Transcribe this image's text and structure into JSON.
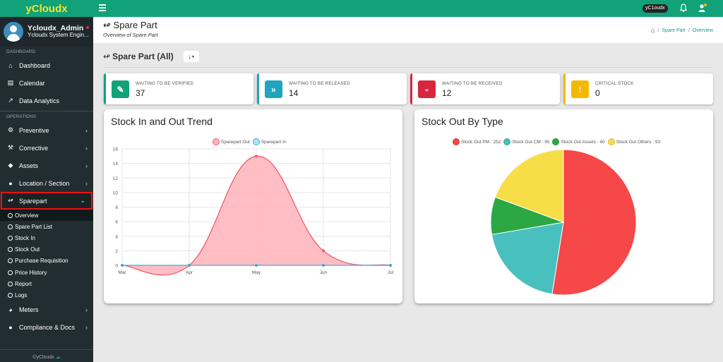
{
  "brand": "yCloudx",
  "user": {
    "name": "Ycloudx_Admin",
    "role": "Ycloudx System Engin..."
  },
  "sidebar": {
    "section_dashboard": "DASHBOARD",
    "section_operations": "OPERATIONS",
    "dashboard_items": [
      {
        "label": "Dashboard",
        "icon": "home-icon"
      },
      {
        "label": "Calendar",
        "icon": "calendar-icon"
      },
      {
        "label": "Data Analytics",
        "icon": "chart-icon"
      }
    ],
    "ops_items": [
      {
        "label": "Preventive",
        "icon": "gear-icon"
      },
      {
        "label": "Corrective",
        "icon": "wrench-icon"
      },
      {
        "label": "Assets",
        "icon": "tag-icon"
      },
      {
        "label": "Location / Section",
        "icon": "globe-icon"
      },
      {
        "label": "Sparepart",
        "icon": "sparepart-icon"
      }
    ],
    "sub_items": [
      "Overview",
      "Spare Part List",
      "Stock In",
      "Stock Out",
      "Purchase Requisition",
      "Price History",
      "Report",
      "Logs"
    ],
    "bottom_items": [
      {
        "label": "Meters",
        "icon": "meter-icon"
      },
      {
        "label": "Compliance & Docs",
        "icon": "docs-icon"
      }
    ],
    "footer": "©yCloudx"
  },
  "topbar": {
    "env_badge": "yC1oudx"
  },
  "header": {
    "title": "Spare Part",
    "subtitle": "Overview of Spare Part"
  },
  "breadcrumb": {
    "link": "Spare Part",
    "current": "Overview"
  },
  "filter": {
    "title": "Spare Part (All)"
  },
  "cards": [
    {
      "label": "WAITING TO BE VERIFIED",
      "value": "37",
      "color": "#11a27a"
    },
    {
      "label": "WAITING TO BE RELEASED",
      "value": "14",
      "color": "#20a4bf"
    },
    {
      "label": "WAITING TO BE RECEIVED",
      "value": "12",
      "color": "#d7263d"
    },
    {
      "label": "CRITICAL STOCK",
      "value": "0",
      "color": "#f5b800"
    }
  ],
  "chart_data": [
    {
      "type": "area",
      "title": "Stock In and Out Trend",
      "categories": [
        "Mar",
        "Apr",
        "May",
        "Jun",
        "Jul"
      ],
      "ylim": [
        0,
        16
      ],
      "yticks": [
        0,
        2,
        4,
        6,
        8,
        10,
        12,
        14,
        16
      ],
      "series": [
        {
          "name": "Sparepart Out",
          "values": [
            0,
            0,
            15,
            2,
            0
          ],
          "color": "#f35a6a",
          "fill": "#ffb3ba"
        },
        {
          "name": "Sparepart In",
          "values": [
            0,
            0,
            0,
            0,
            0
          ],
          "color": "#46a8e0",
          "fill": "#aee0f7"
        }
      ],
      "grid": true,
      "legend": "top-center"
    },
    {
      "type": "pie",
      "title": "Stock Out By Type",
      "slices": [
        {
          "label": "Stock Out PM",
          "value": 252,
          "color": "#f64749"
        },
        {
          "label": "Stock Out CM",
          "value": 95,
          "color": "#48c0bd"
        },
        {
          "label": "Stock Out Assets",
          "value": 40,
          "color": "#2ba744"
        },
        {
          "label": "Stock Out Others",
          "value": 93,
          "color": "#f7dd47"
        }
      ],
      "legend": "top-center"
    }
  ]
}
